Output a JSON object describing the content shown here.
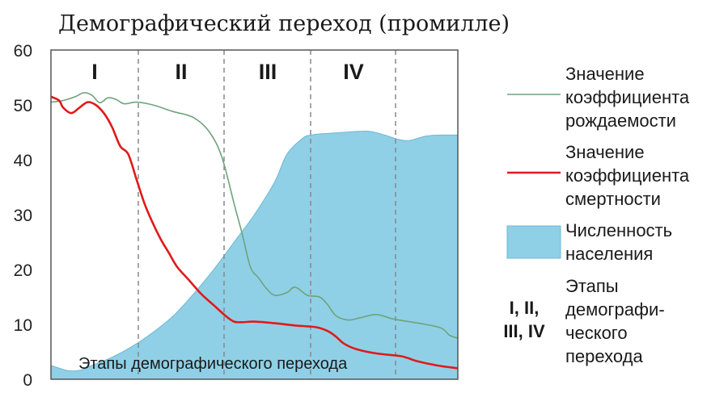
{
  "chart_data": {
    "type": "area",
    "title": "Демографический переход (промилле)",
    "ylim": [
      0,
      60
    ],
    "yticks": [
      "0",
      "10",
      "20",
      "30",
      "40",
      "50",
      "60"
    ],
    "stages": [
      "I",
      "II",
      "III",
      "IV"
    ],
    "bottom_label": "Этапы демографического перехода",
    "series": [
      {
        "name": "Значение коэффициента рождаемости",
        "type": "line",
        "color": "#6fa37b",
        "x": [
          0,
          3,
          6,
          8,
          10,
          12,
          14,
          16,
          18,
          21,
          25,
          30,
          35,
          39,
          42,
          45,
          47,
          49,
          51,
          53,
          55,
          58,
          60,
          63,
          66,
          68,
          70,
          73,
          76,
          80,
          84,
          88,
          92,
          96,
          98,
          100
        ],
        "values": [
          50.5,
          50.8,
          51.5,
          52.2,
          51.8,
          50.4,
          51.3,
          51.0,
          50.2,
          50.5,
          50.0,
          48.8,
          47.7,
          45.0,
          40.5,
          32.0,
          26.5,
          20.5,
          18.5,
          16.5,
          15.3,
          15.8,
          16.8,
          15.3,
          15.0,
          13.6,
          11.6,
          10.8,
          11.2,
          11.8,
          11.0,
          10.5,
          10.0,
          9.3,
          8.0,
          7.5
        ]
      },
      {
        "name": "Значение коэффициента смертности",
        "type": "line",
        "color": "#e01a1a",
        "x": [
          0,
          2,
          3,
          5,
          7,
          9,
          11,
          13,
          15,
          17,
          19,
          21,
          23,
          25,
          27,
          29,
          31,
          34,
          37,
          40,
          43,
          45,
          47,
          50,
          55,
          60,
          65,
          68,
          70,
          72,
          75,
          80,
          86,
          90,
          95,
          100
        ],
        "values": [
          51.5,
          50.8,
          49.5,
          48.5,
          49.5,
          50.5,
          50.0,
          48.5,
          46.0,
          42.5,
          41.0,
          36.5,
          32.0,
          28.5,
          25.5,
          23.0,
          20.5,
          18.0,
          15.5,
          13.5,
          11.5,
          10.5,
          10.4,
          10.5,
          10.2,
          9.8,
          9.5,
          8.8,
          7.8,
          6.5,
          5.5,
          4.7,
          4.2,
          3.3,
          2.5,
          2.0
        ]
      },
      {
        "name": "Численность населения",
        "type": "area",
        "color": "#8fd0e6",
        "x": [
          0,
          3,
          5,
          8,
          10,
          15,
          20,
          25,
          30,
          35,
          40,
          45,
          50,
          55,
          58,
          62,
          64,
          66,
          68,
          72,
          78,
          82,
          85,
          88,
          92,
          95,
          100
        ],
        "values": [
          2.5,
          1.8,
          1.5,
          1.8,
          2.5,
          4.0,
          6.0,
          8.5,
          11.5,
          15.5,
          20.0,
          25.0,
          30.0,
          36.0,
          41.0,
          44.0,
          44.5,
          44.7,
          44.8,
          45.0,
          45.2,
          44.5,
          43.8,
          43.5,
          44.3,
          44.5,
          44.5
        ]
      }
    ],
    "legend_stages_marker": "I, II,\nIII, IV",
    "legend_stages_text": "Этапы демографического перехода"
  },
  "legend": {
    "birth": [
      "Значение",
      "коэффициента",
      "рождаемости"
    ],
    "death": [
      "Значение",
      "коэффициента",
      "смертности"
    ],
    "population": [
      "Численность",
      "населения"
    ],
    "stages_marker": [
      "I, II,",
      "III, IV"
    ],
    "stages_text": [
      "Этапы",
      "демографи-",
      "ческого",
      "перехода"
    ]
  }
}
